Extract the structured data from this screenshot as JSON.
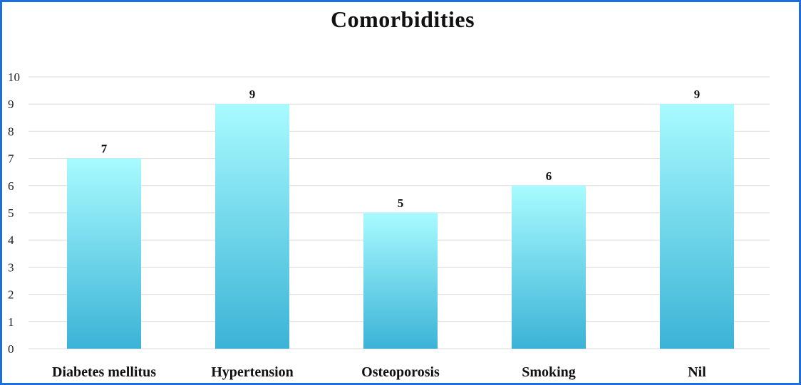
{
  "chart_data": {
    "type": "bar",
    "title": "Comorbidities",
    "categories": [
      "Diabetes mellitus",
      "Hypertension",
      "Osteoporosis",
      "Smoking",
      "Nil"
    ],
    "values": [
      7,
      9,
      5,
      6,
      9
    ],
    "yticks": [
      0,
      1,
      2,
      3,
      4,
      5,
      6,
      7,
      8,
      9,
      10
    ],
    "ylim": [
      0,
      10
    ],
    "xlabel": "",
    "ylabel": "",
    "grid": true,
    "legend": "none",
    "colors": {
      "bar_top": "#a8fbff",
      "bar_bottom": "#3bb3d6",
      "grid": "#d9d9d9",
      "frame": "#1e6fd9"
    }
  }
}
